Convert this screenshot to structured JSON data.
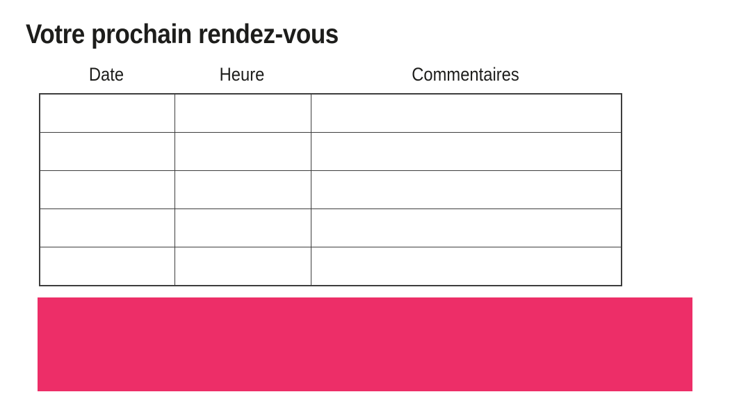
{
  "page": {
    "title": "Votre prochain rendez-vous",
    "background": "#ffffff"
  },
  "appointments_table": {
    "headers": {
      "date": "Date",
      "heure": "Heure",
      "commentaires": "Commentaires"
    },
    "rows": [
      {
        "date": "",
        "heure": "",
        "commentaires": ""
      },
      {
        "date": "",
        "heure": "",
        "commentaires": ""
      },
      {
        "date": "",
        "heure": "",
        "commentaires": ""
      },
      {
        "date": "",
        "heure": "",
        "commentaires": ""
      },
      {
        "date": "",
        "heure": "",
        "commentaires": ""
      }
    ]
  },
  "banner": {
    "text": ""
  },
  "colors": {
    "text": "#1D1D1B",
    "table_border": "#3D3D3D",
    "accent_pink": "#ED2E68"
  }
}
